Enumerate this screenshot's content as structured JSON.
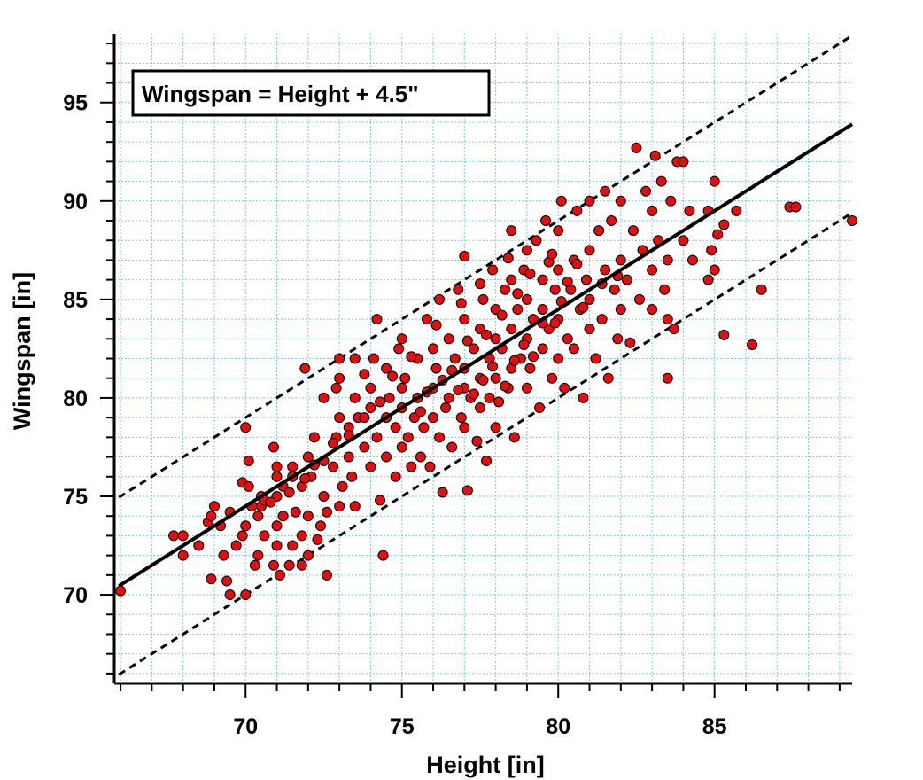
{
  "chart_data": {
    "type": "scatter",
    "title": "",
    "xlabel": "Height [in]",
    "ylabel": "Wingspan [in]",
    "xlim": [
      65.8,
      89.4
    ],
    "ylim": [
      65.5,
      98.5
    ],
    "xticks": [
      70,
      75,
      80,
      85
    ],
    "yticks": [
      70,
      75,
      80,
      85,
      90,
      95
    ],
    "xtick_labels": [
      "70",
      "75",
      "80",
      "85"
    ],
    "ytick_labels": [
      "70",
      "75",
      "80",
      "85",
      "90",
      "95"
    ],
    "grid": true,
    "marker_color": "#e01010",
    "marker_edge_color": "#000000",
    "grid_color": "#7fc8e0",
    "annotation": "Wingspan = Height + 4.5\"",
    "fit_line": {
      "slope": 1.0,
      "intercept": 4.5,
      "style": "solid"
    },
    "prediction_band": {
      "offset": 4.5,
      "style": "dashed"
    },
    "points_note": "approximately 1400 points",
    "points": [
      [
        66.0,
        70.2
      ],
      [
        67.7,
        73.0
      ],
      [
        68.0,
        73.0
      ],
      [
        68.0,
        72.0
      ],
      [
        68.5,
        72.5
      ],
      [
        68.8,
        73.7
      ],
      [
        68.9,
        74.0
      ],
      [
        69.0,
        74.5
      ],
      [
        68.9,
        70.8
      ],
      [
        69.2,
        73.5
      ],
      [
        69.3,
        72.0
      ],
      [
        69.4,
        70.7
      ],
      [
        69.5,
        70.0
      ],
      [
        69.5,
        74.2
      ],
      [
        69.7,
        72.5
      ],
      [
        69.9,
        73.0
      ],
      [
        69.9,
        75.7
      ],
      [
        70.0,
        73.5
      ],
      [
        70.0,
        70.0
      ],
      [
        70.1,
        75.5
      ],
      [
        70.0,
        78.5
      ],
      [
        70.1,
        76.8
      ],
      [
        70.2,
        74.5
      ],
      [
        70.3,
        71.5
      ],
      [
        70.4,
        72.0
      ],
      [
        70.5,
        74.5
      ],
      [
        70.5,
        75.0
      ],
      [
        70.6,
        73.0
      ],
      [
        70.6,
        74.8
      ],
      [
        70.9,
        77.5
      ],
      [
        70.9,
        71.5
      ],
      [
        71.0,
        72.5
      ],
      [
        71.0,
        73.5
      ],
      [
        71.0,
        75.0
      ],
      [
        71.0,
        76.0
      ],
      [
        71.0,
        76.5
      ],
      [
        71.1,
        71.0
      ],
      [
        71.2,
        74.0
      ],
      [
        71.2,
        75.5
      ],
      [
        71.4,
        71.5
      ],
      [
        71.5,
        72.5
      ],
      [
        71.5,
        76.0
      ],
      [
        71.5,
        76.5
      ],
      [
        71.6,
        74.2
      ],
      [
        71.8,
        71.5
      ],
      [
        71.8,
        73.0
      ],
      [
        71.8,
        75.5
      ],
      [
        71.9,
        81.5
      ],
      [
        72.0,
        72.0
      ],
      [
        72.0,
        74.0
      ],
      [
        72.0,
        77.0
      ],
      [
        72.1,
        76.0
      ],
      [
        72.2,
        78.0
      ],
      [
        72.3,
        72.8
      ],
      [
        72.4,
        73.5
      ],
      [
        72.5,
        75.0
      ],
      [
        72.5,
        76.8
      ],
      [
        72.5,
        80.0
      ],
      [
        72.6,
        74.2
      ],
      [
        72.6,
        71.0
      ],
      [
        72.8,
        76.5
      ],
      [
        72.9,
        78.0
      ],
      [
        72.9,
        80.5
      ],
      [
        73.0,
        74.5
      ],
      [
        73.0,
        79.0
      ],
      [
        73.0,
        81.0
      ],
      [
        73.0,
        82.0
      ],
      [
        73.1,
        75.5
      ],
      [
        73.3,
        77.0
      ],
      [
        73.3,
        78.5
      ],
      [
        73.4,
        76.0
      ],
      [
        73.5,
        74.5
      ],
      [
        73.5,
        80.0
      ],
      [
        73.5,
        82.0
      ],
      [
        73.6,
        79.0
      ],
      [
        73.8,
        77.5
      ],
      [
        73.8,
        81.2
      ],
      [
        74.0,
        76.5
      ],
      [
        74.0,
        79.5
      ],
      [
        74.0,
        80.5
      ],
      [
        74.1,
        82.0
      ],
      [
        74.2,
        78.0
      ],
      [
        74.2,
        84.0
      ],
      [
        74.3,
        74.8
      ],
      [
        74.4,
        72.0
      ],
      [
        74.5,
        77.0
      ],
      [
        74.5,
        79.0
      ],
      [
        74.5,
        81.5
      ],
      [
        74.6,
        80.0
      ],
      [
        74.8,
        76.0
      ],
      [
        74.8,
        78.5
      ],
      [
        74.9,
        82.5
      ],
      [
        75.0,
        77.5
      ],
      [
        75.0,
        79.5
      ],
      [
        75.0,
        80.5
      ],
      [
        75.0,
        83.0
      ],
      [
        75.1,
        81.0
      ],
      [
        75.2,
        78.0
      ],
      [
        75.3,
        76.5
      ],
      [
        75.4,
        79.0
      ],
      [
        75.5,
        80.0
      ],
      [
        75.5,
        82.0
      ],
      [
        75.6,
        77.0
      ],
      [
        75.7,
        78.5
      ],
      [
        75.8,
        84.0
      ],
      [
        75.9,
        76.5
      ],
      [
        76.0,
        79.0
      ],
      [
        76.0,
        80.5
      ],
      [
        76.0,
        82.5
      ],
      [
        76.1,
        81.5
      ],
      [
        76.2,
        78.0
      ],
      [
        76.2,
        85.0
      ],
      [
        76.3,
        75.2
      ],
      [
        76.4,
        79.5
      ],
      [
        76.5,
        80.0
      ],
      [
        76.5,
        83.0
      ],
      [
        76.6,
        77.5
      ],
      [
        76.7,
        82.0
      ],
      [
        76.8,
        85.5
      ],
      [
        76.9,
        79.0
      ],
      [
        77.0,
        78.5
      ],
      [
        77.0,
        80.5
      ],
      [
        77.0,
        81.5
      ],
      [
        77.0,
        84.0
      ],
      [
        77.0,
        87.2
      ],
      [
        77.1,
        75.3
      ],
      [
        77.2,
        80.0
      ],
      [
        77.3,
        82.5
      ],
      [
        77.4,
        77.8
      ],
      [
        77.5,
        79.5
      ],
      [
        77.5,
        81.0
      ],
      [
        77.5,
        83.5
      ],
      [
        77.6,
        85.0
      ],
      [
        77.7,
        76.8
      ],
      [
        77.8,
        80.0
      ],
      [
        77.8,
        82.0
      ],
      [
        77.9,
        86.5
      ],
      [
        78.0,
        78.5
      ],
      [
        78.0,
        81.0
      ],
      [
        78.0,
        83.0
      ],
      [
        78.0,
        84.5
      ],
      [
        78.1,
        79.8
      ],
      [
        78.2,
        82.5
      ],
      [
        78.3,
        85.5
      ],
      [
        78.4,
        80.5
      ],
      [
        78.5,
        81.5
      ],
      [
        78.5,
        83.5
      ],
      [
        78.5,
        86.0
      ],
      [
        78.5,
        88.5
      ],
      [
        78.6,
        78.0
      ],
      [
        78.7,
        84.5
      ],
      [
        78.8,
        82.0
      ],
      [
        78.9,
        86.5
      ],
      [
        79.0,
        80.5
      ],
      [
        79.0,
        83.0
      ],
      [
        79.0,
        85.0
      ],
      [
        79.0,
        87.5
      ],
      [
        79.1,
        81.5
      ],
      [
        79.2,
        84.0
      ],
      [
        79.3,
        88.0
      ],
      [
        79.4,
        79.5
      ],
      [
        79.5,
        82.5
      ],
      [
        79.5,
        84.5
      ],
      [
        79.5,
        86.0
      ],
      [
        79.6,
        89.0
      ],
      [
        79.7,
        83.5
      ],
      [
        79.8,
        81.0
      ],
      [
        79.9,
        85.5
      ],
      [
        80.0,
        82.0
      ],
      [
        80.0,
        84.0
      ],
      [
        80.0,
        86.5
      ],
      [
        80.0,
        88.5
      ],
      [
        80.1,
        90.0
      ],
      [
        80.2,
        80.5
      ],
      [
        80.3,
        83.0
      ],
      [
        80.4,
        85.5
      ],
      [
        80.5,
        87.0
      ],
      [
        80.5,
        82.5
      ],
      [
        80.6,
        89.5
      ],
      [
        80.7,
        84.5
      ],
      [
        80.8,
        80.0
      ],
      [
        80.9,
        86.0
      ],
      [
        81.0,
        83.5
      ],
      [
        81.0,
        85.0
      ],
      [
        81.0,
        87.5
      ],
      [
        81.0,
        90.0
      ],
      [
        81.2,
        82.0
      ],
      [
        81.3,
        88.5
      ],
      [
        81.4,
        84.0
      ],
      [
        81.5,
        86.5
      ],
      [
        81.5,
        90.5
      ],
      [
        81.6,
        81.0
      ],
      [
        81.7,
        89.0
      ],
      [
        81.8,
        85.5
      ],
      [
        81.9,
        83.0
      ],
      [
        82.0,
        87.0
      ],
      [
        82.0,
        84.5
      ],
      [
        82.0,
        90.0
      ],
      [
        82.2,
        86.0
      ],
      [
        82.3,
        82.8
      ],
      [
        82.4,
        88.5
      ],
      [
        82.5,
        92.7
      ],
      [
        82.6,
        85.0
      ],
      [
        82.7,
        87.5
      ],
      [
        82.8,
        90.5
      ],
      [
        83.0,
        84.5
      ],
      [
        83.0,
        86.5
      ],
      [
        83.0,
        89.5
      ],
      [
        83.1,
        92.3
      ],
      [
        83.2,
        88.0
      ],
      [
        83.3,
        91.0
      ],
      [
        83.4,
        85.5
      ],
      [
        83.5,
        84.0
      ],
      [
        83.5,
        87.0
      ],
      [
        83.6,
        90.0
      ],
      [
        83.7,
        83.5
      ],
      [
        83.8,
        92.0
      ],
      [
        84.0,
        92.0
      ],
      [
        84.0,
        88.0
      ],
      [
        84.2,
        89.5
      ],
      [
        84.3,
        87.0
      ],
      [
        83.5,
        81.0
      ],
      [
        84.8,
        89.5
      ],
      [
        84.8,
        86.0
      ],
      [
        84.9,
        87.5
      ],
      [
        85.0,
        91.0
      ],
      [
        85.1,
        88.3
      ],
      [
        85.0,
        86.5
      ],
      [
        85.3,
        83.2
      ],
      [
        85.3,
        88.8
      ],
      [
        85.7,
        89.5
      ],
      [
        86.2,
        82.7
      ],
      [
        86.5,
        85.5
      ],
      [
        87.4,
        89.7
      ],
      [
        87.6,
        89.7
      ],
      [
        89.4,
        89.0
      ],
      [
        77.3,
        80.2
      ],
      [
        77.6,
        80.9
      ],
      [
        78.3,
        80.6
      ],
      [
        78.6,
        81.9
      ],
      [
        79.2,
        82.1
      ],
      [
        79.5,
        83.8
      ],
      [
        80.1,
        84.9
      ],
      [
        80.3,
        85.9
      ],
      [
        79.7,
        86.9
      ],
      [
        79.1,
        86.3
      ],
      [
        78.7,
        85.3
      ],
      [
        78.2,
        84.2
      ],
      [
        77.7,
        83.2
      ],
      [
        77.1,
        82.9
      ],
      [
        76.6,
        81.4
      ],
      [
        76.3,
        80.9
      ],
      [
        75.8,
        80.3
      ],
      [
        75.6,
        79.3
      ],
      [
        76.8,
        80.4
      ],
      [
        77.9,
        81.6
      ],
      [
        78.9,
        82.7
      ],
      [
        79.9,
        83.8
      ],
      [
        80.8,
        84.6
      ],
      [
        81.4,
        85.8
      ],
      [
        81.9,
        86.2
      ],
      [
        80.6,
        86.8
      ],
      [
        79.8,
        87.3
      ],
      [
        78.4,
        87.1
      ],
      [
        77.5,
        85.8
      ],
      [
        76.9,
        84.8
      ],
      [
        76.1,
        83.7
      ],
      [
        75.3,
        82.1
      ],
      [
        74.7,
        81.1
      ],
      [
        74.3,
        79.8
      ],
      [
        73.8,
        79.0
      ],
      [
        73.3,
        78.1
      ],
      [
        72.8,
        77.7
      ],
      [
        72.2,
        76.6
      ],
      [
        71.9,
        75.9
      ],
      [
        71.4,
        75.2
      ],
      [
        70.8,
        74.7
      ],
      [
        70.4,
        74.0
      ]
    ]
  }
}
